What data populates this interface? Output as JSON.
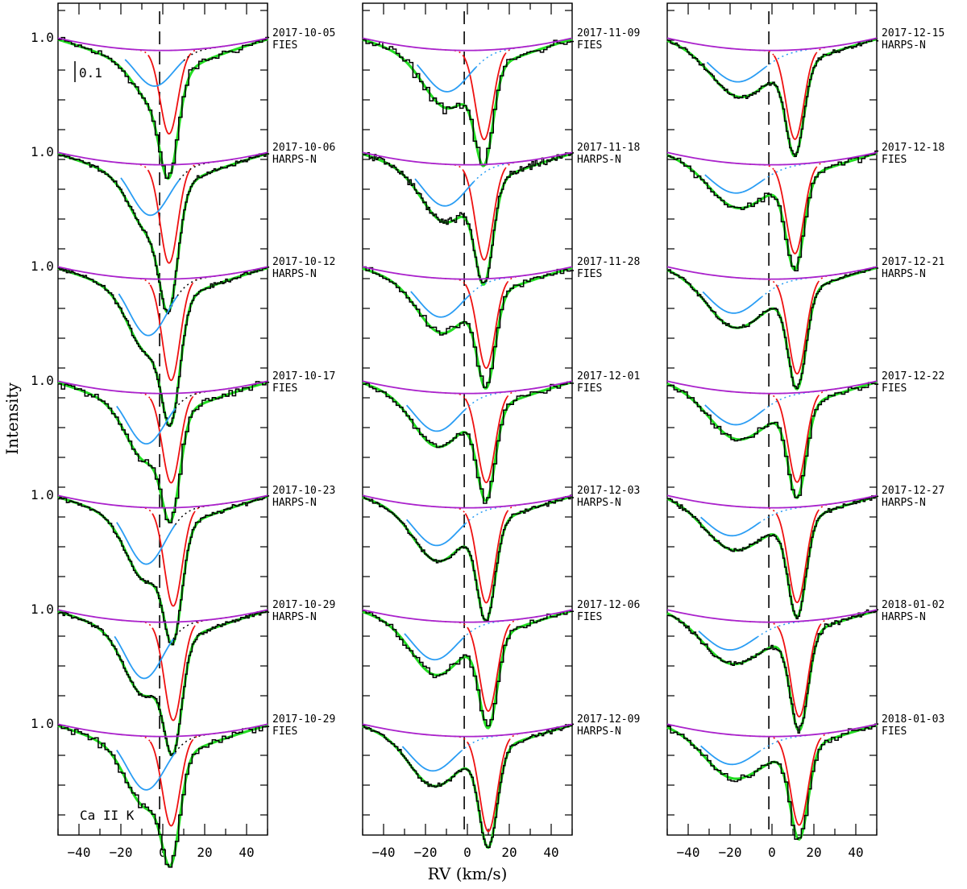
{
  "chart_data": {
    "type": "line",
    "ylabel": "Intensity",
    "xlabel": "RV (km/s)",
    "xlim": [
      -50,
      50
    ],
    "xticks": [
      -40,
      -20,
      0,
      20,
      40
    ],
    "xtick_labels": [
      "−40",
      "−20",
      "0",
      "20",
      "40"
    ],
    "continuum_label": "1.0",
    "scale_bar_label": "0.1",
    "line_label": "Ca II K",
    "rest_velocity": -1.5,
    "colors": {
      "observed": "#000000",
      "fit_total": "#22dd22",
      "narrow_component": "#ee1111",
      "broad_component": "#2a9df4",
      "continuum": "#aa22cc",
      "reference_line": "#000000"
    },
    "panels": [
      {
        "column": 1,
        "row": 1,
        "date": "2017-10-05",
        "instrument": "FIES",
        "narrow_v": 3,
        "narrow_depth": 0.28,
        "broad_v": -4,
        "broad_depth": 0.12,
        "noise": 0.012,
        "binning": 3
      },
      {
        "column": 1,
        "row": 2,
        "date": "2017-10-06",
        "instrument": "HARPS-N",
        "narrow_v": 3,
        "narrow_depth": 0.33,
        "broad_v": -6,
        "broad_depth": 0.17,
        "noise": 0.006,
        "binning": 1
      },
      {
        "column": 1,
        "row": 3,
        "date": "2017-10-12",
        "instrument": "HARPS-N",
        "narrow_v": 4,
        "narrow_depth": 0.34,
        "broad_v": -7,
        "broad_depth": 0.19,
        "noise": 0.006,
        "binning": 1
      },
      {
        "column": 1,
        "row": 4,
        "date": "2017-10-17",
        "instrument": "FIES",
        "narrow_v": 4,
        "narrow_depth": 0.3,
        "broad_v": -8,
        "broad_depth": 0.17,
        "noise": 0.012,
        "binning": 3
      },
      {
        "column": 1,
        "row": 5,
        "date": "2017-10-23",
        "instrument": "HARPS-N",
        "narrow_v": 5,
        "narrow_depth": 0.33,
        "broad_v": -8,
        "broad_depth": 0.19,
        "noise": 0.006,
        "binning": 1
      },
      {
        "column": 1,
        "row": 6,
        "date": "2017-10-29",
        "instrument": "HARPS-N",
        "narrow_v": 5,
        "narrow_depth": 0.33,
        "broad_v": -9,
        "broad_depth": 0.19,
        "noise": 0.006,
        "binning": 1
      },
      {
        "column": 1,
        "row": 7,
        "date": "2017-10-29",
        "instrument": "FIES",
        "narrow_v": 4,
        "narrow_depth": 0.3,
        "broad_v": -8,
        "broad_depth": 0.18,
        "noise": 0.012,
        "binning": 3
      },
      {
        "column": 2,
        "row": 1,
        "date": "2017-11-09",
        "instrument": "FIES",
        "narrow_v": 8,
        "narrow_depth": 0.3,
        "broad_v": -10,
        "broad_depth": 0.14,
        "noise": 0.014,
        "binning": 3
      },
      {
        "column": 2,
        "row": 2,
        "date": "2017-11-18",
        "instrument": "HARPS-N",
        "narrow_v": 8,
        "narrow_depth": 0.32,
        "broad_v": -11,
        "broad_depth": 0.14,
        "noise": 0.012,
        "binning": 1
      },
      {
        "column": 2,
        "row": 3,
        "date": "2017-11-28",
        "instrument": "FIES",
        "narrow_v": 9,
        "narrow_depth": 0.3,
        "broad_v": -13,
        "broad_depth": 0.13,
        "noise": 0.01,
        "binning": 3
      },
      {
        "column": 2,
        "row": 4,
        "date": "2017-12-01",
        "instrument": "FIES",
        "narrow_v": 9,
        "narrow_depth": 0.3,
        "broad_v": -15,
        "broad_depth": 0.13,
        "noise": 0.01,
        "binning": 3
      },
      {
        "column": 2,
        "row": 5,
        "date": "2017-12-03",
        "instrument": "HARPS-N",
        "narrow_v": 9,
        "narrow_depth": 0.32,
        "broad_v": -15,
        "broad_depth": 0.13,
        "noise": 0.006,
        "binning": 1
      },
      {
        "column": 2,
        "row": 6,
        "date": "2017-12-06",
        "instrument": "FIES",
        "narrow_v": 10,
        "narrow_depth": 0.3,
        "broad_v": -16,
        "broad_depth": 0.13,
        "noise": 0.01,
        "binning": 3
      },
      {
        "column": 2,
        "row": 7,
        "date": "2017-12-09",
        "instrument": "HARPS-N",
        "narrow_v": 10,
        "narrow_depth": 0.32,
        "broad_v": -17,
        "broad_depth": 0.12,
        "noise": 0.006,
        "binning": 1
      },
      {
        "column": 3,
        "row": 1,
        "date": "2017-12-15",
        "instrument": "HARPS-N",
        "narrow_v": 11,
        "narrow_depth": 0.3,
        "broad_v": -17,
        "broad_depth": 0.11,
        "noise": 0.006,
        "binning": 1
      },
      {
        "column": 3,
        "row": 2,
        "date": "2017-12-18",
        "instrument": "FIES",
        "narrow_v": 11,
        "narrow_depth": 0.3,
        "broad_v": -18,
        "broad_depth": 0.1,
        "noise": 0.01,
        "binning": 3
      },
      {
        "column": 3,
        "row": 3,
        "date": "2017-12-21",
        "instrument": "HARPS-N",
        "narrow_v": 12,
        "narrow_depth": 0.32,
        "broad_v": -19,
        "broad_depth": 0.12,
        "noise": 0.006,
        "binning": 1
      },
      {
        "column": 3,
        "row": 4,
        "date": "2017-12-22",
        "instrument": "FIES",
        "narrow_v": 12,
        "narrow_depth": 0.3,
        "broad_v": -18,
        "broad_depth": 0.11,
        "noise": 0.01,
        "binning": 3
      },
      {
        "column": 3,
        "row": 5,
        "date": "2017-12-27",
        "instrument": "HARPS-N",
        "narrow_v": 12,
        "narrow_depth": 0.32,
        "broad_v": -20,
        "broad_depth": 0.1,
        "noise": 0.006,
        "binning": 1
      },
      {
        "column": 3,
        "row": 6,
        "date": "2018-01-02",
        "instrument": "HARPS-N",
        "narrow_v": 13,
        "narrow_depth": 0.32,
        "broad_v": -21,
        "broad_depth": 0.1,
        "noise": 0.008,
        "binning": 1
      },
      {
        "column": 3,
        "row": 7,
        "date": "2018-01-03",
        "instrument": "FIES",
        "narrow_v": 13,
        "narrow_depth": 0.3,
        "broad_v": -20,
        "broad_depth": 0.1,
        "noise": 0.01,
        "binning": 3
      }
    ]
  }
}
